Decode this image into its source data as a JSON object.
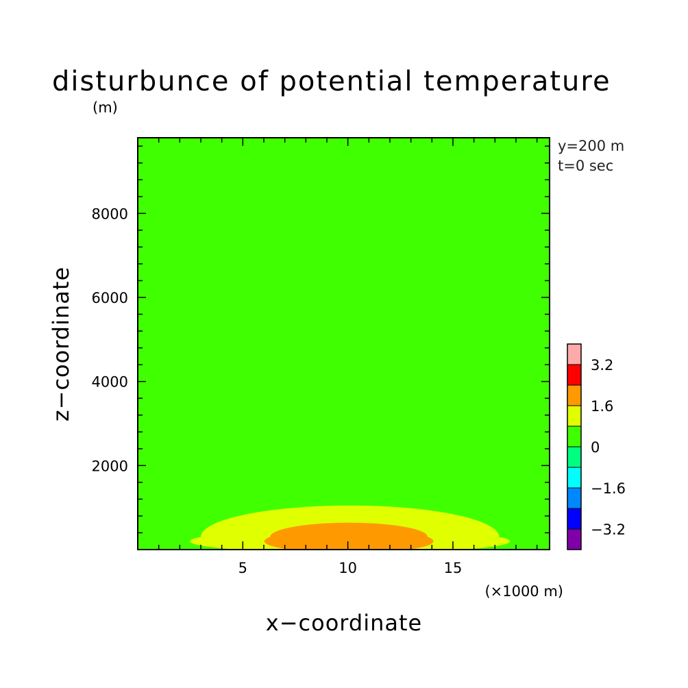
{
  "chart_data": {
    "type": "heatmap",
    "title": "disturbunce of potential temperature",
    "y_unit": "(m)",
    "x_unit": "(×1000 m)",
    "xlabel": "x−coordinate",
    "ylabel": "z−coordinate",
    "xlim": [
      0,
      19.6
    ],
    "ylim": [
      0,
      9800
    ],
    "x_ticks": [
      5,
      10,
      15
    ],
    "x_tick_labels": [
      "5",
      "10",
      "15"
    ],
    "y_ticks": [
      2000,
      4000,
      6000,
      8000
    ],
    "y_tick_labels": [
      "2000",
      "4000",
      "6000",
      "8000"
    ],
    "annotations": [
      "y=200 m",
      "t=0 sec"
    ],
    "colorbar": {
      "levels": [
        -4,
        -3.2,
        -2.4,
        -1.6,
        -0.8,
        0,
        0.8,
        1.6,
        2.4,
        3.2,
        4
      ],
      "colors": [
        "#8000a8",
        "#0000ff",
        "#0088ff",
        "#00ffff",
        "#00ff80",
        "#40ff00",
        "#e0ff00",
        "#ff9900",
        "#ff0000",
        "#ffaaaa"
      ],
      "tick_values": [
        -3.2,
        -1.6,
        0,
        1.6,
        3.2
      ],
      "tick_labels": [
        "−3.2",
        "−1.6",
        "0",
        "1.6",
        "3.2"
      ]
    },
    "background_value_range": [
      0,
      0.8
    ],
    "background_color": "#40ff00",
    "contours": [
      {
        "range": [
          0.8,
          1.6
        ],
        "color": "#e0ff00",
        "x_extent": [
          3.0,
          17.2
        ],
        "z_max": 1050
      },
      {
        "range": [
          1.6,
          2.4
        ],
        "color": "#ff9900",
        "x_extent": [
          6.3,
          13.8
        ],
        "z_max": 640
      }
    ]
  }
}
